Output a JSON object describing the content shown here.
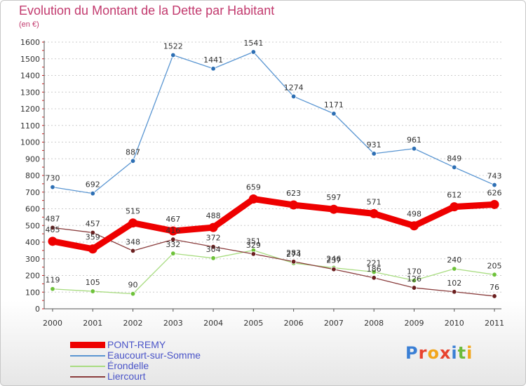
{
  "header": {
    "title": "Evolution du Montant de la Dette par Habitant",
    "subtitle": "(en €)"
  },
  "logo": {
    "text": "Proxiti",
    "colors": [
      "#3a7fd5",
      "#e8432e",
      "#f2a61b",
      "#e8432e",
      "#3a7fd5",
      "#6dbb3b",
      "#f2a61b"
    ]
  },
  "chart_data": {
    "type": "line",
    "title": "Evolution du Montant de la Dette par Habitant",
    "subtitle": "(en €)",
    "xlabel": "",
    "ylabel": "",
    "x": [
      "2000",
      "2001",
      "2002",
      "2003",
      "2004",
      "2005",
      "2006",
      "2007",
      "2008",
      "2009",
      "2010",
      "2011"
    ],
    "ylim": [
      0,
      1600
    ],
    "yticks": [
      "0",
      "100",
      "200",
      "300",
      "400",
      "500",
      "600",
      "700",
      "800",
      "900",
      "1000",
      "1100",
      "1200",
      "1300",
      "1400",
      "1500",
      "1600"
    ],
    "grid": "horizontal dashed",
    "legend_position": "bottom-left",
    "series": [
      {
        "name": "Eaucourt-sur-Somme",
        "color": "#5a96d2",
        "point_color": "#2d6fb4",
        "thick": false,
        "values": [
          730,
          692,
          887,
          1522,
          1441,
          1541,
          1274,
          1171,
          931,
          961,
          849,
          743
        ],
        "labels": [
          "730",
          "692",
          "887",
          "1522",
          "1441",
          "1541",
          "1274",
          "1171",
          "931",
          "961",
          "849",
          "743"
        ]
      },
      {
        "name": "Érondelle",
        "color": "#a8dc80",
        "point_color": "#6ec23a",
        "thick": false,
        "values": [
          119,
          105,
          90,
          332,
          304,
          351,
          274,
          246,
          221,
          170,
          240,
          205
        ],
        "labels": [
          "119",
          "105",
          "90",
          "332",
          "304",
          "351",
          "274",
          "246",
          "221",
          "170",
          "240",
          "205"
        ]
      },
      {
        "name": "Liercourt",
        "color": "#8a3d3d",
        "point_color": "#6b1f1f",
        "thick": false,
        "values": [
          487,
          457,
          348,
          416,
          372,
          329,
          283,
          237,
          186,
          126,
          102,
          76
        ],
        "labels": [
          "487",
          "457",
          "348",
          "416",
          "372",
          "329",
          "283",
          "237",
          "186",
          "126",
          "102",
          "76"
        ]
      },
      {
        "name": "PONT-REMY",
        "color": "#ee0000",
        "point_color": "#ee0000",
        "thick": true,
        "values": [
          405,
          359,
          515,
          467,
          488,
          659,
          623,
          597,
          571,
          498,
          612,
          626
        ],
        "labels": [
          "405",
          "359",
          "515",
          "467",
          "488",
          "659",
          "623",
          "597",
          "571",
          "498",
          "612",
          "626"
        ]
      }
    ],
    "legend_order": [
      "PONT-REMY",
      "Eaucourt-sur-Somme",
      "Érondelle",
      "Liercourt"
    ]
  }
}
